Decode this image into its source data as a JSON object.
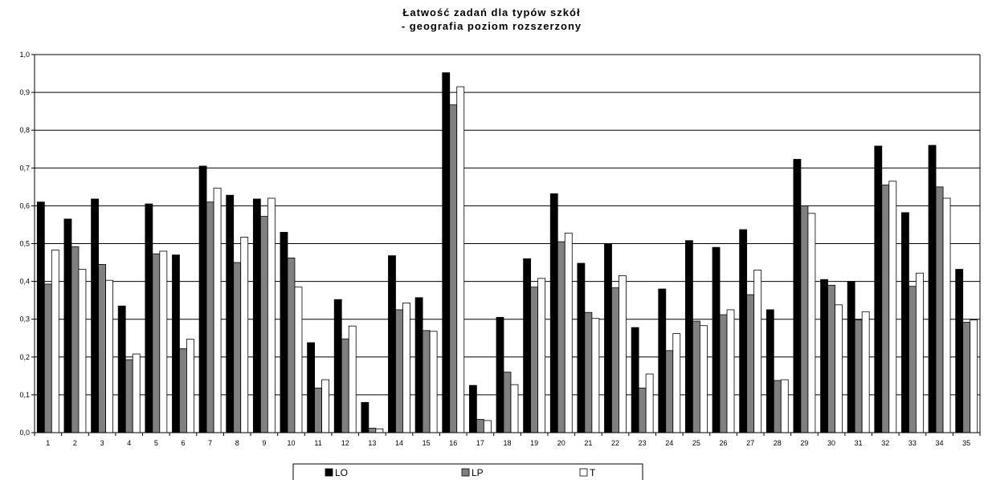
{
  "chart_data": {
    "type": "bar",
    "title": "Łatwość zadań dla typów szkół",
    "subtitle": "- geografia poziom rozszerzony",
    "xlabel": "",
    "ylabel": "",
    "ylim": [
      0,
      1.0
    ],
    "yticks": [
      "0,0",
      "0,1",
      "0,2",
      "0,3",
      "0,4",
      "0,5",
      "0,6",
      "0,7",
      "0,8",
      "0,9",
      "1,0"
    ],
    "grid": true,
    "legend_position": "bottom",
    "categories": [
      "1",
      "2",
      "3",
      "4",
      "5",
      "6",
      "7",
      "8",
      "9",
      "10",
      "11",
      "12",
      "13",
      "14",
      "15",
      "16",
      "17",
      "18",
      "19",
      "20",
      "21",
      "22",
      "23",
      "24",
      "25",
      "26",
      "27",
      "28",
      "29",
      "30",
      "31",
      "32",
      "33",
      "34",
      "35"
    ],
    "series": [
      {
        "name": "LO",
        "color": "#000000",
        "values": [
          0.61,
          0.565,
          0.618,
          0.335,
          0.605,
          0.47,
          0.705,
          0.628,
          0.618,
          0.53,
          0.238,
          0.352,
          0.08,
          0.468,
          0.357,
          0.952,
          0.125,
          0.305,
          0.46,
          0.632,
          0.448,
          0.5,
          0.278,
          0.38,
          0.508,
          0.49,
          0.537,
          0.325,
          0.723,
          0.405,
          0.4,
          0.758,
          0.582,
          0.76,
          0.432
        ]
      },
      {
        "name": "LP",
        "color": "#808080",
        "values": [
          0.393,
          0.492,
          0.445,
          0.193,
          0.473,
          0.222,
          0.61,
          0.45,
          0.572,
          0.462,
          0.118,
          0.248,
          0.012,
          0.325,
          0.27,
          0.867,
          0.035,
          0.16,
          0.385,
          0.505,
          0.318,
          0.383,
          0.118,
          0.217,
          0.295,
          0.312,
          0.365,
          0.138,
          0.6,
          0.39,
          0.298,
          0.655,
          0.387,
          0.65,
          0.292
        ]
      },
      {
        "name": "T",
        "color": "#ffffff",
        "values": [
          0.483,
          0.432,
          0.403,
          0.208,
          0.48,
          0.247,
          0.647,
          0.517,
          0.62,
          0.385,
          0.14,
          0.282,
          0.01,
          0.343,
          0.268,
          0.915,
          0.032,
          0.127,
          0.408,
          0.528,
          0.302,
          0.415,
          0.155,
          0.262,
          0.283,
          0.325,
          0.43,
          0.14,
          0.58,
          0.338,
          0.32,
          0.665,
          0.422,
          0.62,
          0.298
        ]
      }
    ]
  }
}
